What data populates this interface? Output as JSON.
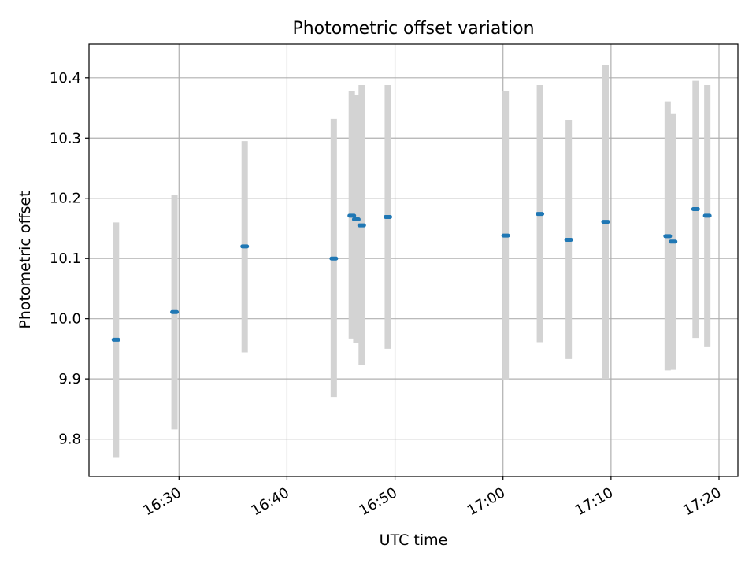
{
  "colors": {
    "point": "#1f77b4",
    "errorbar": "#d3d3d3",
    "grid": "#b0b0b0",
    "axis": "#000000",
    "background": "#ffffff"
  },
  "chart_data": {
    "type": "scatter",
    "title": "Photometric offset variation",
    "xlabel": "UTC time",
    "ylabel": "Photometric offset",
    "grid": true,
    "xlim": [
      "16:21:40",
      "17:21:45"
    ],
    "ylim": [
      9.738,
      10.456
    ],
    "x_ticks": [
      "16:30",
      "16:40",
      "16:50",
      "17:00",
      "17:10",
      "17:20"
    ],
    "y_ticks": [
      "9.8",
      "9.9",
      "10.0",
      "10.1",
      "10.2",
      "10.3",
      "10.4"
    ],
    "series": [
      {
        "points": [
          {
            "x": "16:24:10",
            "y": 9.965,
            "ylow": 9.77,
            "yhigh": 10.16
          },
          {
            "x": "16:29:35",
            "y": 10.011,
            "ylow": 9.816,
            "yhigh": 10.205
          },
          {
            "x": "16:36:05",
            "y": 10.12,
            "ylow": 9.944,
            "yhigh": 10.295
          },
          {
            "x": "16:44:20",
            "y": 10.1,
            "ylow": 9.87,
            "yhigh": 10.332
          },
          {
            "x": "16:46:00",
            "y": 10.171,
            "ylow": 9.967,
            "yhigh": 10.378
          },
          {
            "x": "16:46:25",
            "y": 10.165,
            "ylow": 9.96,
            "yhigh": 10.372
          },
          {
            "x": "16:46:55",
            "y": 10.155,
            "ylow": 9.923,
            "yhigh": 10.388
          },
          {
            "x": "16:49:20",
            "y": 10.169,
            "ylow": 9.95,
            "yhigh": 10.388
          },
          {
            "x": "17:00:15",
            "y": 10.138,
            "ylow": 9.898,
            "yhigh": 10.378
          },
          {
            "x": "17:03:25",
            "y": 10.174,
            "ylow": 9.961,
            "yhigh": 10.388
          },
          {
            "x": "17:06:05",
            "y": 10.131,
            "ylow": 9.933,
            "yhigh": 10.33
          },
          {
            "x": "17:09:30",
            "y": 10.161,
            "ylow": 9.9,
            "yhigh": 10.422
          },
          {
            "x": "17:15:15",
            "y": 10.137,
            "ylow": 9.914,
            "yhigh": 10.361
          },
          {
            "x": "17:15:45",
            "y": 10.128,
            "ylow": 9.915,
            "yhigh": 10.34
          },
          {
            "x": "17:17:50",
            "y": 10.182,
            "ylow": 9.968,
            "yhigh": 10.395
          },
          {
            "x": "17:18:55",
            "y": 10.171,
            "ylow": 9.954,
            "yhigh": 10.388
          }
        ]
      }
    ]
  }
}
